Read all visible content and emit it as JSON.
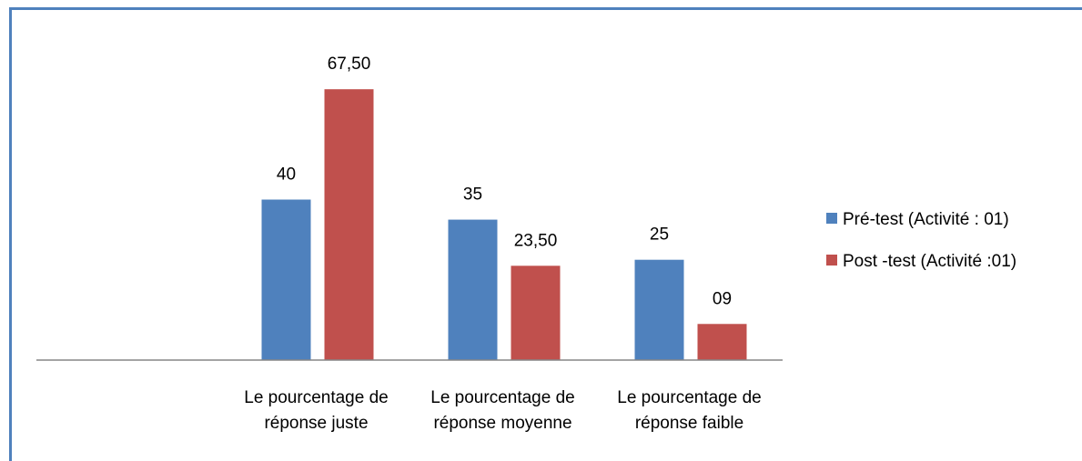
{
  "chart_data": {
    "type": "bar",
    "categories": [
      null,
      "Le pourcentage de réponse juste",
      "Le pourcentage de réponse moyenne",
      "Le pourcentage de réponse faible"
    ],
    "series": [
      {
        "name": "Pré-test (Activité : 01)",
        "color": "#4f81bd",
        "values": [
          null,
          40,
          35,
          25
        ],
        "value_labels": [
          null,
          "40",
          "35",
          "25"
        ]
      },
      {
        "name": "Post -test (Activité :01)",
        "color": "#c0504d",
        "values": [
          null,
          67.5,
          23.5,
          9
        ],
        "value_labels": [
          null,
          "67,50",
          "23,50",
          "09"
        ]
      }
    ],
    "ylim": [
      0,
      80
    ],
    "legend": "right"
  }
}
